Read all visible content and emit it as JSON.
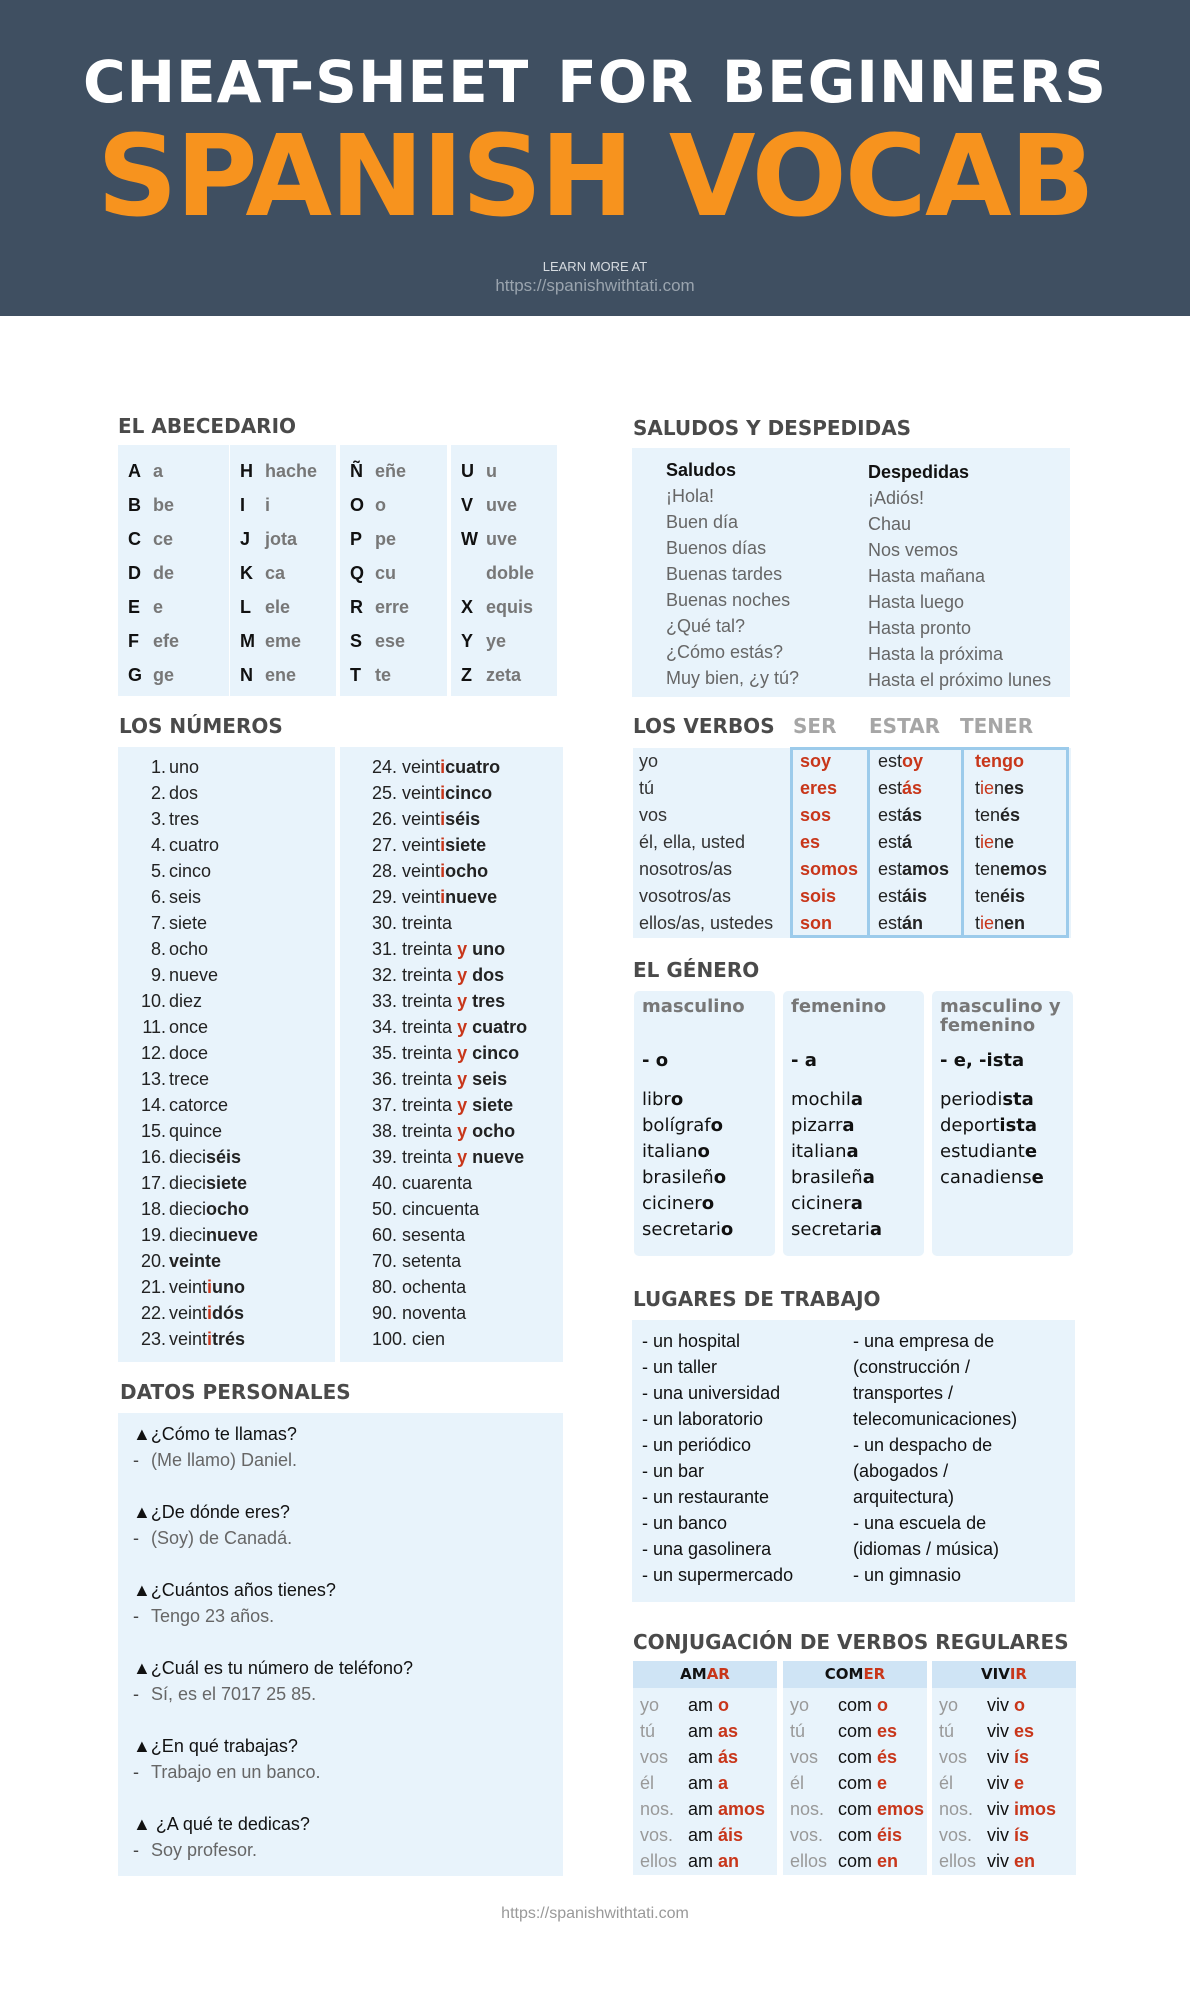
{
  "header": {
    "title_words": [
      "CHEAT-SHEET",
      "FOR",
      "BEGINNERS"
    ],
    "subtitle": "SPANISH VOCAB",
    "learn_more": "LEARN MORE AT",
    "url": "https://spanishwithtati.com"
  },
  "colors": {
    "header_bg": "#3f4f61",
    "accent_orange": "#f7931e",
    "accent_red": "#c8361a",
    "panel_bg": "#e8f3fb"
  },
  "abecedario": {
    "title": "EL ABECEDARIO",
    "columns": [
      [
        [
          "A",
          "a"
        ],
        [
          "B",
          "be"
        ],
        [
          "C",
          "ce"
        ],
        [
          "D",
          "de"
        ],
        [
          "E",
          "e"
        ],
        [
          "F",
          "efe"
        ],
        [
          "G",
          "ge"
        ]
      ],
      [
        [
          "H",
          "hache"
        ],
        [
          "I",
          "i"
        ],
        [
          "J",
          "jota"
        ],
        [
          "K",
          "ca"
        ],
        [
          "L",
          "ele"
        ],
        [
          "M",
          "eme"
        ],
        [
          "N",
          "ene"
        ]
      ],
      [
        [
          "Ñ",
          "eñe"
        ],
        [
          "O",
          "o"
        ],
        [
          "P",
          "pe"
        ],
        [
          "Q",
          "cu"
        ],
        [
          "R",
          "erre"
        ],
        [
          "S",
          "ese"
        ],
        [
          "T",
          "te"
        ]
      ],
      [
        [
          "U",
          "u"
        ],
        [
          "V",
          "uve"
        ],
        [
          "W",
          "uve"
        ],
        [
          "",
          "doble"
        ],
        [
          "X",
          "equis"
        ],
        [
          "Y",
          "ye"
        ],
        [
          "Z",
          "zeta"
        ]
      ]
    ]
  },
  "numeros": {
    "title": "LOS NÚMEROS",
    "col1": [
      {
        "n": "1.",
        "w": [
          [
            "uno",
            ""
          ]
        ]
      },
      {
        "n": "2.",
        "w": [
          [
            "dos",
            ""
          ]
        ]
      },
      {
        "n": "3.",
        "w": [
          [
            "tres",
            ""
          ]
        ]
      },
      {
        "n": "4.",
        "w": [
          [
            "cuatro",
            ""
          ]
        ]
      },
      {
        "n": "5.",
        "w": [
          [
            "cinco",
            ""
          ]
        ]
      },
      {
        "n": "6.",
        "w": [
          [
            "seis",
            ""
          ]
        ]
      },
      {
        "n": "7.",
        "w": [
          [
            "siete",
            ""
          ]
        ]
      },
      {
        "n": "8.",
        "w": [
          [
            "ocho",
            ""
          ]
        ]
      },
      {
        "n": "9.",
        "w": [
          [
            "nueve",
            ""
          ]
        ]
      },
      {
        "n": "10.",
        "w": [
          [
            "diez",
            ""
          ]
        ]
      },
      {
        "n": "11.",
        "w": [
          [
            "once",
            ""
          ]
        ]
      },
      {
        "n": "12.",
        "w": [
          [
            "doce",
            ""
          ]
        ]
      },
      {
        "n": "13.",
        "w": [
          [
            "trece",
            ""
          ]
        ]
      },
      {
        "n": "14.",
        "w": [
          [
            "catorce",
            ""
          ]
        ]
      },
      {
        "n": "15.",
        "w": [
          [
            "quince",
            ""
          ]
        ]
      },
      {
        "n": "16.",
        "w": [
          [
            "dieci",
            ""
          ],
          [
            "séis",
            "b"
          ]
        ]
      },
      {
        "n": "17.",
        "w": [
          [
            "dieci",
            ""
          ],
          [
            "siete",
            "b"
          ]
        ]
      },
      {
        "n": "18.",
        "w": [
          [
            "dieci",
            ""
          ],
          [
            "ocho",
            "b"
          ]
        ]
      },
      {
        "n": "19.",
        "w": [
          [
            "dieci",
            ""
          ],
          [
            "nueve",
            "b"
          ]
        ]
      },
      {
        "n": "20.",
        "w": [
          [
            "veinte",
            "b"
          ]
        ]
      },
      {
        "n": "21.",
        "w": [
          [
            "veint",
            ""
          ],
          [
            "i",
            "r"
          ],
          [
            "uno",
            "b"
          ]
        ]
      },
      {
        "n": "22.",
        "w": [
          [
            "veint",
            ""
          ],
          [
            "i",
            "r"
          ],
          [
            "dós",
            "b"
          ]
        ]
      },
      {
        "n": "23.",
        "w": [
          [
            "veint",
            ""
          ],
          [
            "i",
            "r"
          ],
          [
            "trés",
            "b"
          ]
        ]
      }
    ],
    "col2": [
      {
        "n": "24.",
        "w": [
          [
            "veint",
            ""
          ],
          [
            "i",
            "r"
          ],
          [
            "cuatro",
            "b"
          ]
        ]
      },
      {
        "n": "25.",
        "w": [
          [
            "veint",
            ""
          ],
          [
            "i",
            "r"
          ],
          [
            "cinco",
            "b"
          ]
        ]
      },
      {
        "n": "26.",
        "w": [
          [
            "veint",
            ""
          ],
          [
            "i",
            "r"
          ],
          [
            "séis",
            "b"
          ]
        ]
      },
      {
        "n": "27.",
        "w": [
          [
            "veint",
            ""
          ],
          [
            "i",
            "r"
          ],
          [
            "siete",
            "b"
          ]
        ]
      },
      {
        "n": "28.",
        "w": [
          [
            "veint",
            ""
          ],
          [
            "i",
            "r"
          ],
          [
            "ocho",
            "b"
          ]
        ]
      },
      {
        "n": "29.",
        "w": [
          [
            "veint",
            ""
          ],
          [
            "i",
            "r"
          ],
          [
            "nueve",
            "b"
          ]
        ]
      },
      {
        "n": "30.",
        "w": [
          [
            "treinta",
            ""
          ]
        ]
      },
      {
        "n": "31.",
        "w": [
          [
            "treinta ",
            ""
          ],
          [
            "y",
            "r"
          ],
          [
            " uno",
            "b"
          ]
        ]
      },
      {
        "n": "32.",
        "w": [
          [
            "treinta ",
            ""
          ],
          [
            "y",
            "r"
          ],
          [
            " dos",
            "b"
          ]
        ]
      },
      {
        "n": "33.",
        "w": [
          [
            "treinta ",
            ""
          ],
          [
            "y",
            "r"
          ],
          [
            " tres",
            "b"
          ]
        ]
      },
      {
        "n": "34.",
        "w": [
          [
            "treinta ",
            ""
          ],
          [
            "y",
            "r"
          ],
          [
            " cuatro",
            "b"
          ]
        ]
      },
      {
        "n": "35.",
        "w": [
          [
            "treinta ",
            ""
          ],
          [
            "y",
            "r"
          ],
          [
            " cinco",
            "b"
          ]
        ]
      },
      {
        "n": "36.",
        "w": [
          [
            "treinta ",
            ""
          ],
          [
            "y",
            "r"
          ],
          [
            " seis",
            "b"
          ]
        ]
      },
      {
        "n": "37.",
        "w": [
          [
            "treinta ",
            ""
          ],
          [
            "y",
            "r"
          ],
          [
            " siete",
            "b"
          ]
        ]
      },
      {
        "n": "38.",
        "w": [
          [
            "treinta ",
            ""
          ],
          [
            "y",
            "r"
          ],
          [
            " ocho",
            "b"
          ]
        ]
      },
      {
        "n": "39.",
        "w": [
          [
            "treinta ",
            ""
          ],
          [
            "y",
            "r"
          ],
          [
            " nueve",
            "b"
          ]
        ]
      },
      {
        "n": "40.",
        "w": [
          [
            "cuarenta",
            ""
          ]
        ]
      },
      {
        "n": "50.",
        "w": [
          [
            "cincuenta",
            ""
          ]
        ]
      },
      {
        "n": "60.",
        "w": [
          [
            "sesenta",
            ""
          ]
        ]
      },
      {
        "n": "70.",
        "w": [
          [
            "setenta",
            ""
          ]
        ]
      },
      {
        "n": "80.",
        "w": [
          [
            "ochenta",
            ""
          ]
        ]
      },
      {
        "n": "90.",
        "w": [
          [
            "noventa",
            ""
          ]
        ]
      },
      {
        "n": "100.",
        "w": [
          [
            "cien",
            ""
          ]
        ]
      }
    ]
  },
  "datos": {
    "title": "DATOS PERSONALES",
    "items": [
      {
        "q": "▲¿Cómo te llamas?",
        "a": "(Me llamo) Daniel."
      },
      {
        "q": "▲¿De dónde eres?",
        "a": "(Soy) de Canadá."
      },
      {
        "q": "▲¿Cuántos años tienes?",
        "a": "Tengo 23 años."
      },
      {
        "q": "▲¿Cuál es tu número de teléfono?",
        "a": "Sí, es el 7017 25 85."
      },
      {
        "q": "▲¿En qué trabajas?",
        "a": "Trabajo en un banco."
      },
      {
        "q": "▲ ¿A qué te dedicas?",
        "a": "Soy profesor."
      }
    ],
    "dash": "-"
  },
  "saludos": {
    "title": "SALUDOS Y DESPEDIDAS",
    "col1_head": "Saludos",
    "col1": [
      "¡Hola!",
      "Buen día",
      "Buenos días",
      "Buenas tardes",
      "Buenas noches",
      "¿Qué tal?",
      "¿Cómo estás?",
      "Muy bien, ¿y tú?"
    ],
    "col2_head": "Despedidas",
    "col2": [
      "¡Adiós!",
      "Chau",
      "Nos vemos",
      "Hasta mañana",
      "Hasta luego",
      "Hasta pronto",
      "Hasta la próxima",
      "Hasta el próximo lunes"
    ]
  },
  "verbos": {
    "title": "LOS VERBOS",
    "headers": [
      "SER",
      "ESTAR",
      "TENER"
    ],
    "pronouns": [
      "yo",
      "tú",
      "vos",
      "él, ella, usted",
      "nosotros/as",
      "vosotros/as",
      "ellos/as, ustedes"
    ],
    "ser": [
      [
        [
          "soy",
          "r"
        ]
      ],
      [
        [
          "eres",
          "r"
        ]
      ],
      [
        [
          "sos",
          "r"
        ]
      ],
      [
        [
          "es",
          "r"
        ]
      ],
      [
        [
          "somos",
          "r"
        ]
      ],
      [
        [
          "sois",
          "r"
        ]
      ],
      [
        [
          "son",
          "r"
        ]
      ]
    ],
    "estar": [
      [
        [
          "est",
          ""
        ],
        [
          "oy",
          "r"
        ]
      ],
      [
        [
          "est",
          ""
        ],
        [
          "ás",
          "r"
        ]
      ],
      [
        [
          "est",
          ""
        ],
        [
          "ás",
          "b"
        ]
      ],
      [
        [
          "est",
          ""
        ],
        [
          "á",
          "b"
        ]
      ],
      [
        [
          "est",
          ""
        ],
        [
          "amos",
          "b"
        ]
      ],
      [
        [
          "est",
          ""
        ],
        [
          "áis",
          "b"
        ]
      ],
      [
        [
          "est",
          ""
        ],
        [
          "án",
          "b"
        ]
      ]
    ],
    "tener": [
      [
        [
          "tengo",
          "r"
        ]
      ],
      [
        [
          "t",
          ""
        ],
        [
          "ie",
          "ri"
        ],
        [
          "n",
          ""
        ],
        [
          "es",
          "b"
        ]
      ],
      [
        [
          "ten",
          ""
        ],
        [
          "és",
          "b"
        ]
      ],
      [
        [
          "t",
          ""
        ],
        [
          "ie",
          "ri"
        ],
        [
          "n",
          ""
        ],
        [
          "e",
          "b"
        ]
      ],
      [
        [
          "ten",
          ""
        ],
        [
          "emos",
          "b"
        ]
      ],
      [
        [
          "ten",
          ""
        ],
        [
          "éis",
          "b"
        ]
      ],
      [
        [
          "t",
          ""
        ],
        [
          "ie",
          "ri"
        ],
        [
          "n",
          ""
        ],
        [
          "en",
          "b"
        ]
      ]
    ]
  },
  "genero": {
    "title": "EL GÉNERO",
    "columns": [
      {
        "head": "masculino",
        "suffix": "- o",
        "words": [
          [
            [
              "libr",
              ""
            ],
            [
              "o",
              "b"
            ]
          ],
          [
            [
              "bolígraf",
              ""
            ],
            [
              "o",
              "b"
            ]
          ],
          [
            [
              "italian",
              ""
            ],
            [
              "o",
              "b"
            ]
          ],
          [
            [
              "brasileñ",
              ""
            ],
            [
              "o",
              "b"
            ]
          ],
          [
            [
              "ciciner",
              ""
            ],
            [
              "o",
              "b"
            ]
          ],
          [
            [
              "secretari",
              ""
            ],
            [
              "o",
              "b"
            ]
          ]
        ]
      },
      {
        "head": "femenino",
        "suffix": "- a",
        "words": [
          [
            [
              "mochil",
              ""
            ],
            [
              "a",
              "b"
            ]
          ],
          [
            [
              "pizarr",
              ""
            ],
            [
              "a",
              "b"
            ]
          ],
          [
            [
              "italian",
              ""
            ],
            [
              "a",
              "b"
            ]
          ],
          [
            [
              "brasileñ",
              ""
            ],
            [
              "a",
              "b"
            ]
          ],
          [
            [
              "ciciner",
              ""
            ],
            [
              "a",
              "b"
            ]
          ],
          [
            [
              "secretari",
              ""
            ],
            [
              "a",
              "b"
            ]
          ]
        ]
      },
      {
        "head": "masculino y femenino",
        "suffix": "- e, -ista",
        "words": [
          [
            [
              "periodi",
              ""
            ],
            [
              "sta",
              "b"
            ]
          ],
          [
            [
              "deport",
              ""
            ],
            [
              "ista",
              "b"
            ]
          ],
          [
            [
              "estudiant",
              ""
            ],
            [
              "e",
              "b"
            ]
          ],
          [
            [
              "canadiens",
              ""
            ],
            [
              "e",
              "b"
            ]
          ]
        ]
      }
    ]
  },
  "lugares": {
    "title": "LUGARES DE TRABAJO",
    "col1": [
      "- un hospital",
      "- un taller",
      "- una universidad",
      "- un laboratorio",
      "- un periódico",
      "- un bar",
      "- un restaurante",
      "- un banco",
      "- una gasolinera",
      "- un supermercado"
    ],
    "col2": [
      "- una empresa de",
      "(construcción /",
      "transportes /",
      "telecomunicaciones)",
      "- un despacho de",
      "(abogados /",
      "arquitectura)",
      "- una escuela de",
      "(idiomas / música)",
      "- un gimnasio"
    ]
  },
  "conjugacion": {
    "title": "CONJUGACIÓN DE VERBOS REGULARES",
    "pronouns": [
      "yo",
      "tú",
      "vos",
      "él",
      "nos.",
      "vos.",
      "ellos"
    ],
    "verbs": [
      {
        "stem": "AM",
        "ending": "AR",
        "root": "am",
        "endings": [
          "o",
          "as",
          "ás",
          "a",
          "amos",
          "áis",
          "an"
        ]
      },
      {
        "stem": "COM",
        "ending": "ER",
        "root": "com",
        "endings": [
          "o",
          "es",
          "és",
          "e",
          "emos",
          "éis",
          "en"
        ]
      },
      {
        "stem": "VIV",
        "ending": "IR",
        "root": "viv",
        "endings": [
          "o",
          "es",
          "ís",
          "e",
          "imos",
          "ís",
          "en"
        ]
      }
    ]
  },
  "footer": {
    "url": "https://spanishwithtati.com"
  }
}
